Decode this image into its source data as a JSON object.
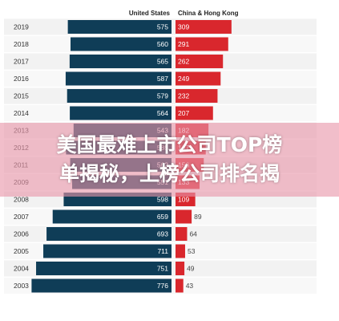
{
  "chart_data": {
    "type": "bar",
    "orientation": "horizontal-diverging",
    "series": [
      {
        "name": "United States",
        "color": "#0f3d57",
        "values": [
          575,
          560,
          565,
          587,
          579,
          564,
          543,
          585,
          562,
          551,
          598,
          659,
          693,
          711,
          751,
          776
        ]
      },
      {
        "name": "China & Hong Kong",
        "color": "#d9272d",
        "values": [
          309,
          291,
          262,
          249,
          232,
          207,
          182,
          167,
          156,
          133,
          109,
          89,
          64,
          53,
          49,
          43
        ]
      }
    ],
    "categories": [
      "2019",
      "2018",
      "2017",
      "2016",
      "2015",
      "2014",
      "2013",
      "2012",
      "2011",
      "2009",
      "2008",
      "2007",
      "2006",
      "2005",
      "2004",
      "2003"
    ],
    "legend_position": "top",
    "grid": false
  },
  "overlay": {
    "title": "美国最难上市公司TOP榜\n单揭秘，上榜公司排名揭"
  }
}
